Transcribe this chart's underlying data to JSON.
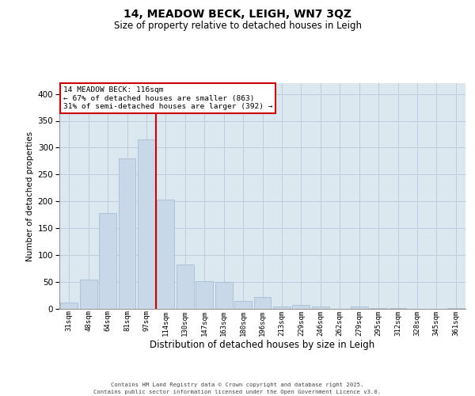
{
  "title1": "14, MEADOW BECK, LEIGH, WN7 3QZ",
  "title2": "Size of property relative to detached houses in Leigh",
  "xlabel": "Distribution of detached houses by size in Leigh",
  "ylabel": "Number of detached properties",
  "bar_color": "#c8d8e8",
  "bar_edge_color": "#a0b8cc",
  "vline_color": "#cc0000",
  "vline_idx": 5,
  "categories": [
    "31sqm",
    "48sqm",
    "64sqm",
    "81sqm",
    "97sqm",
    "114sqm",
    "130sqm",
    "147sqm",
    "163sqm",
    "180sqm",
    "196sqm",
    "213sqm",
    "229sqm",
    "246sqm",
    "262sqm",
    "279sqm",
    "295sqm",
    "312sqm",
    "328sqm",
    "345sqm",
    "361sqm"
  ],
  "values": [
    12,
    54,
    178,
    280,
    315,
    203,
    83,
    51,
    50,
    15,
    22,
    4,
    8,
    4,
    0,
    5,
    2,
    1,
    0,
    0,
    2
  ],
  "annotation_line1": "14 MEADOW BECK: 116sqm",
  "annotation_line2": "← 67% of detached houses are smaller (863)",
  "annotation_line3": "31% of semi-detached houses are larger (392) →",
  "annotation_box_color": "#ffffff",
  "annotation_box_edge_color": "#cc0000",
  "grid_color": "#c0ccdd",
  "bg_color": "#dce8f0",
  "footer_text": "Contains HM Land Registry data © Crown copyright and database right 2025.\nContains public sector information licensed under the Open Government Licence v3.0.",
  "ylim": [
    0,
    420
  ],
  "yticks": [
    0,
    50,
    100,
    150,
    200,
    250,
    300,
    350,
    400
  ]
}
